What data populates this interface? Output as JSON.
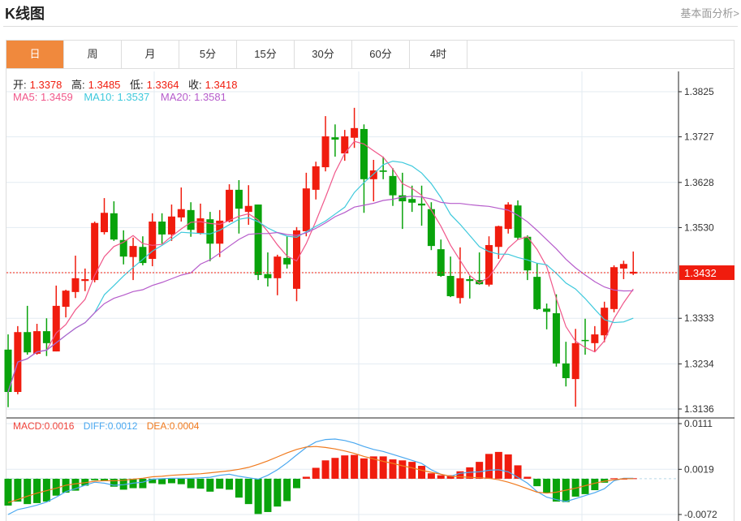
{
  "header": {
    "title": "K线图",
    "more_link": "基本面分析>"
  },
  "tabs": [
    {
      "label": "日",
      "active": true
    },
    {
      "label": "周"
    },
    {
      "label": "月"
    },
    {
      "label": "5分"
    },
    {
      "label": "15分"
    },
    {
      "label": "30分"
    },
    {
      "label": "60分"
    },
    {
      "label": "4时"
    }
  ],
  "ohlc_legend": {
    "open_label": "开:",
    "open": "1.3378",
    "high_label": "高:",
    "high": "1.3485",
    "low_label": "低:",
    "low": "1.3364",
    "close_label": "收:",
    "close": "1.3418"
  },
  "ma_legend": {
    "ma5": "MA5: 1.3459",
    "ma10": "MA10: 1.3537",
    "ma20": "MA20: 1.3581"
  },
  "macd_legend": {
    "macd": "MACD:0.0016",
    "diff": "DIFF:0.0012",
    "dea": "DEA:0.0004"
  },
  "colors": {
    "up": "#f01c0e",
    "down": "#09a30b",
    "ma5": "#f0578a",
    "ma10": "#3ec9dc",
    "ma20": "#b65ccb",
    "diff": "#4aa8f0",
    "dea": "#f07a1e",
    "accent": "#f0893d"
  },
  "chart_data": [
    {
      "type": "candlestick",
      "title": "K线图",
      "y_ticks": [
        "1.3825",
        "1.3727",
        "1.3628",
        "1.3530",
        "1.3333",
        "1.3234",
        "1.3136"
      ],
      "ylim": [
        1.3136,
        1.3825
      ],
      "current_price": "1.3432",
      "ma_periods": [
        5,
        10,
        20
      ],
      "candles": [
        [
          1.3265,
          1.3298,
          1.314,
          1.3173
        ],
        [
          1.3173,
          1.3316,
          1.3168,
          1.3303
        ],
        [
          1.3303,
          1.336,
          1.3254,
          1.3259
        ],
        [
          1.3256,
          1.3321,
          1.3254,
          1.3305
        ],
        [
          1.3305,
          1.3333,
          1.3251,
          1.3279
        ],
        [
          1.3261,
          1.3404,
          1.3261,
          1.336
        ],
        [
          1.3358,
          1.3395,
          1.3335,
          1.3393
        ],
        [
          1.339,
          1.3469,
          1.3377,
          1.342
        ],
        [
          1.3414,
          1.3441,
          1.3392,
          1.3418
        ],
        [
          1.3416,
          1.3543,
          1.3411,
          1.354
        ],
        [
          1.352,
          1.3594,
          1.3515,
          1.3562
        ],
        [
          1.3561,
          1.3587,
          1.3501,
          1.3504
        ],
        [
          1.3503,
          1.3524,
          1.345,
          1.3467
        ],
        [
          1.3466,
          1.3508,
          1.3416,
          1.349
        ],
        [
          1.3488,
          1.3511,
          1.3448,
          1.3453
        ],
        [
          1.3462,
          1.3561,
          1.3446,
          1.3543
        ],
        [
          1.3543,
          1.3561,
          1.3495,
          1.3515
        ],
        [
          1.3515,
          1.358,
          1.3501,
          1.3554
        ],
        [
          1.3552,
          1.3617,
          1.3543,
          1.357
        ],
        [
          1.3568,
          1.3585,
          1.351,
          1.3525
        ],
        [
          1.3518,
          1.3582,
          1.3515,
          1.355
        ],
        [
          1.3548,
          1.3564,
          1.3457,
          1.3495
        ],
        [
          1.3495,
          1.3568,
          1.3466,
          1.3545
        ],
        [
          1.3543,
          1.3624,
          1.3541,
          1.3612
        ],
        [
          1.3612,
          1.3633,
          1.3517,
          1.3571
        ],
        [
          1.3564,
          1.3622,
          1.3536,
          1.3577
        ],
        [
          1.358,
          1.358,
          1.3416,
          1.3427
        ],
        [
          1.3429,
          1.3476,
          1.3402,
          1.342
        ],
        [
          1.342,
          1.3471,
          1.3383,
          1.3467
        ],
        [
          1.3464,
          1.3511,
          1.3441,
          1.345
        ],
        [
          1.3397,
          1.3531,
          1.337,
          1.3524
        ],
        [
          1.3522,
          1.3649,
          1.3511,
          1.3615
        ],
        [
          1.3612,
          1.3673,
          1.3591,
          1.3663
        ],
        [
          1.3661,
          1.3772,
          1.3652,
          1.3728
        ],
        [
          1.3726,
          1.3754,
          1.3684,
          1.3721
        ],
        [
          1.3691,
          1.3742,
          1.3675,
          1.3728
        ],
        [
          1.3725,
          1.379,
          1.3703,
          1.3746
        ],
        [
          1.3744,
          1.3754,
          1.3562,
          1.3635
        ],
        [
          1.3635,
          1.3677,
          1.3587,
          1.3654
        ],
        [
          1.3654,
          1.3684,
          1.3635,
          1.3651
        ],
        [
          1.3642,
          1.3659,
          1.3577,
          1.36
        ],
        [
          1.36,
          1.3649,
          1.3527,
          1.3587
        ],
        [
          1.3592,
          1.3621,
          1.3564,
          1.3584
        ],
        [
          1.3582,
          1.3621,
          1.3534,
          1.3578
        ],
        [
          1.357,
          1.3585,
          1.3481,
          1.349
        ],
        [
          1.3483,
          1.3504,
          1.3423,
          1.3425
        ],
        [
          1.3425,
          1.3467,
          1.3379,
          1.3381
        ],
        [
          1.3377,
          1.3487,
          1.3365,
          1.342
        ],
        [
          1.3418,
          1.3425,
          1.3376,
          1.3414
        ],
        [
          1.3416,
          1.3476,
          1.3406,
          1.3407
        ],
        [
          1.3406,
          1.3511,
          1.3402,
          1.3492
        ],
        [
          1.3488,
          1.3534,
          1.3462,
          1.3533
        ],
        [
          1.3527,
          1.3585,
          1.3517,
          1.358
        ],
        [
          1.3578,
          1.3589,
          1.3504,
          1.3508
        ],
        [
          1.351,
          1.3513,
          1.3416,
          1.3437
        ],
        [
          1.3423,
          1.3453,
          1.3351,
          1.3353
        ],
        [
          1.3354,
          1.3365,
          1.3309,
          1.3347
        ],
        [
          1.3344,
          1.3385,
          1.3228,
          1.3235
        ],
        [
          1.3235,
          1.3282,
          1.3185,
          1.3203
        ],
        [
          1.3201,
          1.331,
          1.3141,
          1.3279
        ],
        [
          1.3286,
          1.3332,
          1.3254,
          1.3284
        ],
        [
          1.3279,
          1.3316,
          1.3261,
          1.3298
        ],
        [
          1.3296,
          1.3369,
          1.3281,
          1.3356
        ],
        [
          1.3353,
          1.3448,
          1.3346,
          1.3444
        ],
        [
          1.3441,
          1.3458,
          1.3418,
          1.3451
        ],
        [
          1.343,
          1.3478,
          1.3427,
          1.3434
        ]
      ]
    },
    {
      "type": "bar+line",
      "title": "MACD",
      "y_ticks": [
        "0.0111",
        "0.0019",
        "-0.0072"
      ],
      "ylim": [
        -0.0072,
        0.0111
      ],
      "macd": [
        -0.0054,
        -0.0046,
        -0.0051,
        -0.0049,
        -0.0046,
        -0.0034,
        -0.0028,
        -0.0024,
        -0.0014,
        -0.0003,
        -0.0004,
        -0.0016,
        -0.0022,
        -0.0019,
        -0.0019,
        -0.0009,
        -0.0011,
        -0.0009,
        -0.0011,
        -0.0019,
        -0.002,
        -0.0026,
        -0.002,
        -0.0022,
        -0.0038,
        -0.0051,
        -0.0071,
        -0.0067,
        -0.0056,
        -0.0045,
        -0.0019,
        0.0004,
        0.0022,
        0.0037,
        0.0042,
        0.0047,
        0.0048,
        0.0041,
        0.0045,
        0.0045,
        0.0039,
        0.0037,
        0.0034,
        0.0026,
        0.0011,
        0.0007,
        0.0007,
        0.0015,
        0.0023,
        0.0034,
        0.005,
        0.0054,
        0.0049,
        0.0027,
        0.0004,
        -0.0015,
        -0.0028,
        -0.0046,
        -0.0047,
        -0.0036,
        -0.0031,
        -0.0023,
        -0.0008,
        0.0001,
        0.0,
        0.0001
      ],
      "diff": [
        -0.0072,
        -0.0062,
        -0.0058,
        -0.0053,
        -0.0047,
        -0.0037,
        -0.0026,
        -0.002,
        -0.0013,
        -0.0007,
        -0.0009,
        -0.0013,
        -0.0012,
        -0.0009,
        -0.0007,
        -0.0001,
        0.0,
        0.0001,
        0.0001,
        0.0001,
        0.0002,
        0.0003,
        0.0007,
        0.0009,
        0.0005,
        0.0002,
        -0.0001,
        0.0007,
        0.0018,
        0.0032,
        0.0048,
        0.0063,
        0.0074,
        0.0079,
        0.008,
        0.0077,
        0.0072,
        0.0065,
        0.0059,
        0.0055,
        0.0049,
        0.0043,
        0.0037,
        0.0031,
        0.0018,
        0.0009,
        0.0005,
        0.0011,
        0.0013,
        0.0014,
        0.0017,
        0.0018,
        0.0014,
        0.0003,
        -0.0009,
        -0.0026,
        -0.0037,
        -0.0042,
        -0.0046,
        -0.004,
        -0.0034,
        -0.0028,
        -0.002,
        -0.0004,
        0.0001,
        0.0001
      ],
      "dea": [
        -0.0048,
        -0.0042,
        -0.0035,
        -0.0029,
        -0.0024,
        -0.0019,
        -0.0013,
        -0.001,
        -0.0008,
        -0.0005,
        -0.0004,
        -0.0004,
        -0.0003,
        -0.0001,
        0.0001,
        0.0004,
        0.0005,
        0.0007,
        0.0008,
        0.0009,
        0.001,
        0.0012,
        0.0014,
        0.0016,
        0.0019,
        0.0023,
        0.0029,
        0.0036,
        0.0044,
        0.0052,
        0.0059,
        0.0064,
        0.0065,
        0.0063,
        0.006,
        0.0056,
        0.0051,
        0.0045,
        0.004,
        0.0035,
        0.0031,
        0.0026,
        0.0022,
        0.0017,
        0.0013,
        0.0009,
        0.0005,
        0.0004,
        0.0003,
        0.0002,
        0.0001,
        -0.0002,
        -0.0007,
        -0.0013,
        -0.002,
        -0.0027,
        -0.0029,
        -0.0027,
        -0.0023,
        -0.0019,
        -0.0014,
        -0.0009,
        -0.0005,
        -0.0002,
        0.0,
        0.0
      ]
    }
  ]
}
